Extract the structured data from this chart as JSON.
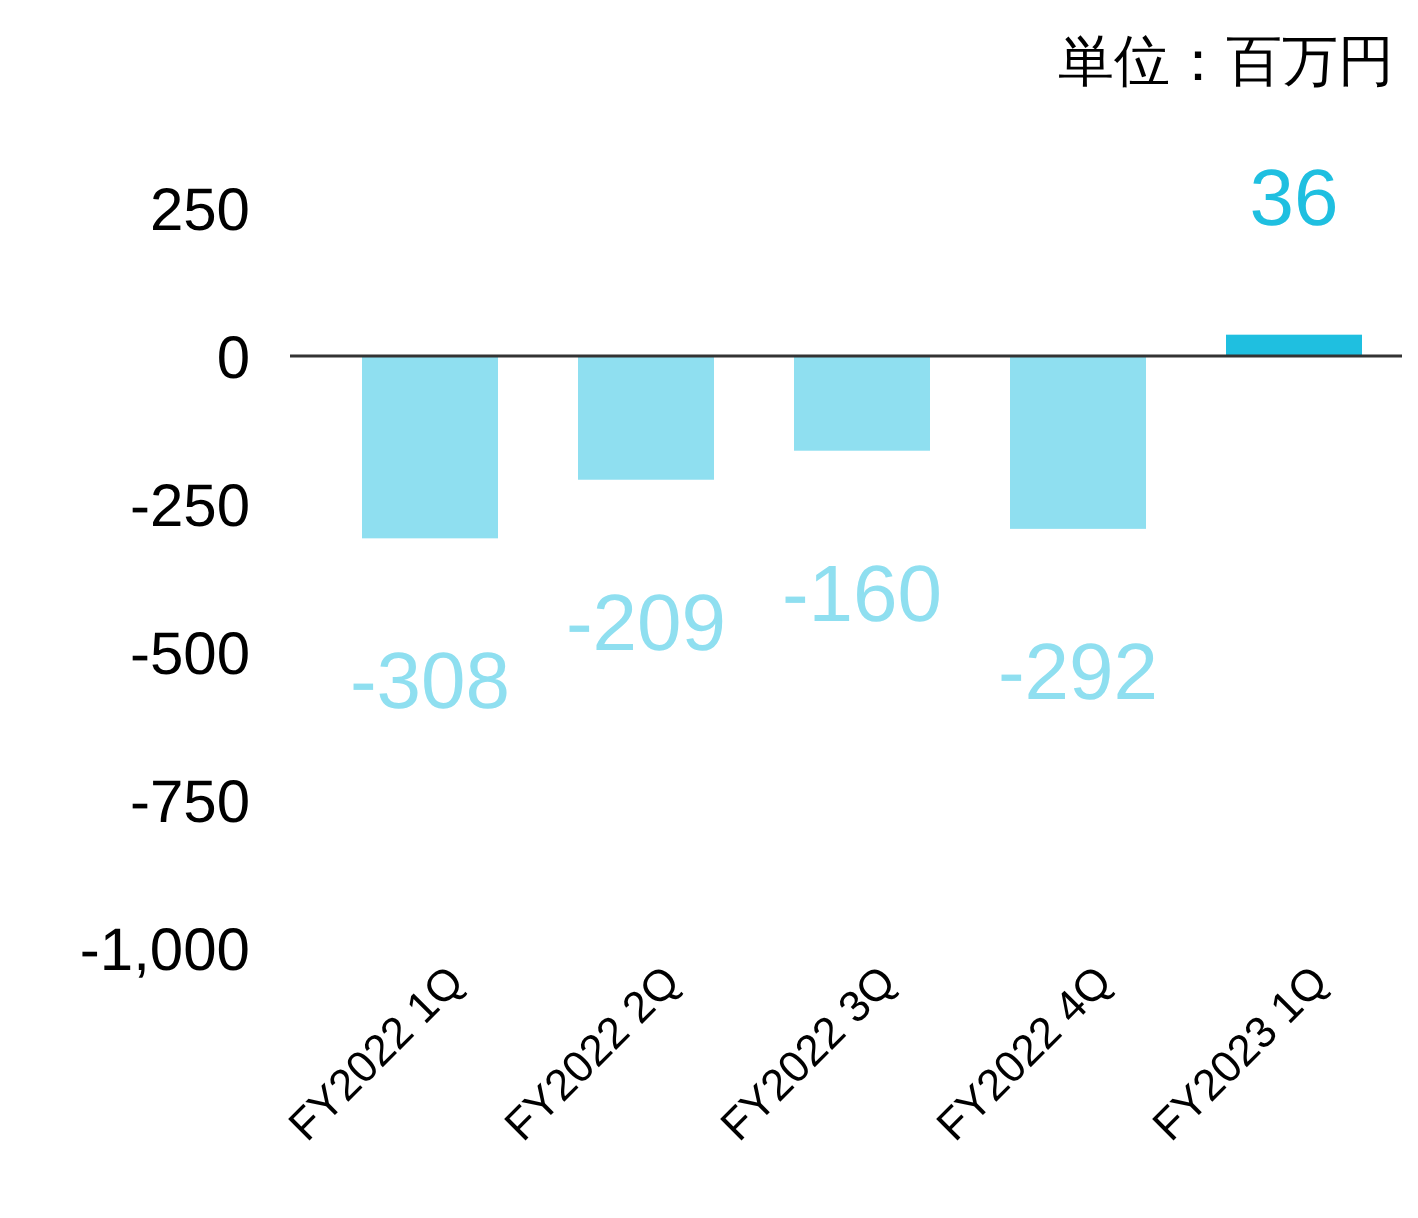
{
  "chart_data": {
    "type": "bar",
    "categories": [
      "FY2022 1Q",
      "FY2022 2Q",
      "FY2022 3Q",
      "FY2022 4Q",
      "FY2023 1Q"
    ],
    "values": [
      -308,
      -209,
      -160,
      -292,
      36
    ],
    "colors": [
      "#8fdff0",
      "#8fdff0",
      "#8fdff0",
      "#8fdff0",
      "#1fbfe0"
    ],
    "ylim": [
      -1000,
      250
    ],
    "yticks": [
      {
        "value": 250,
        "label": "250"
      },
      {
        "value": 0,
        "label": "0"
      },
      {
        "value": -250,
        "label": "-250"
      },
      {
        "value": -500,
        "label": "-500"
      },
      {
        "value": -750,
        "label": "-750"
      },
      {
        "value": -1000,
        "label": "-1,000"
      }
    ],
    "data_labels": true,
    "annotations": [
      "単位：百万円"
    ]
  }
}
